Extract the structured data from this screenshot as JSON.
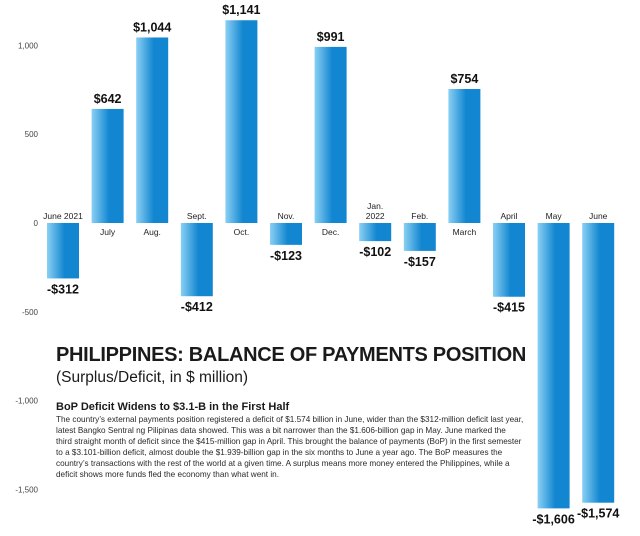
{
  "chart_data": {
    "type": "bar",
    "categories": [
      "June 2021",
      "July",
      "Aug.",
      "Sept.",
      "Oct.",
      "Nov.",
      "Dec.",
      "Jan.\n2022",
      "Feb.",
      "March",
      "April",
      "May",
      "June"
    ],
    "values": [
      -312,
      642,
      1044,
      -412,
      1141,
      -123,
      991,
      -102,
      -157,
      754,
      -415,
      -1606,
      -1574
    ],
    "value_labels": [
      "-$312",
      "$642",
      "$1,044",
      "-$412",
      "$1,141",
      "-$123",
      "$991",
      "-$102",
      "-$157",
      "$754",
      "-$415",
      "-$1,606",
      "-$1,574"
    ],
    "yticks": [
      1000,
      500,
      0,
      -500,
      -1000,
      -1500
    ],
    "ytick_labels": [
      "1,000",
      "500",
      "0",
      "-500",
      "-1,000",
      "-1,500"
    ],
    "ylim": [
      -1700,
      1200
    ],
    "grid": false,
    "title": "PHILIPPINES: BALANCE OF PAYMENTS POSITION",
    "subtitle": "(Surplus/Deficit, in $ million)",
    "colors": {
      "bar_light": "#8ad0f4",
      "bar_dark": "#1286d0",
      "text": "#1a1a1a"
    }
  },
  "text": {
    "heading": "BoP Deficit Widens to $3.1-B in the First Half",
    "body": "The country’s external payments position registered a deficit of $1.574 billion in June, wider than the $312-million deficit last year, latest Bangko Sentral ng Pilipinas data showed. This was a bit narrower than the $1.606-billion gap in May. June marked the third straight month of deficit since the $415-million gap in April. This brought the balance of payments (BoP) in the first semester to a $3.101-billion deficit, almost double the $1.939-billion gap in the six months to June a year ago. The BoP measures the country’s transactions with the rest of the world at a given time. A surplus means more money entered the Philippines, while a deficit shows more funds fled the economy than what went in."
  }
}
